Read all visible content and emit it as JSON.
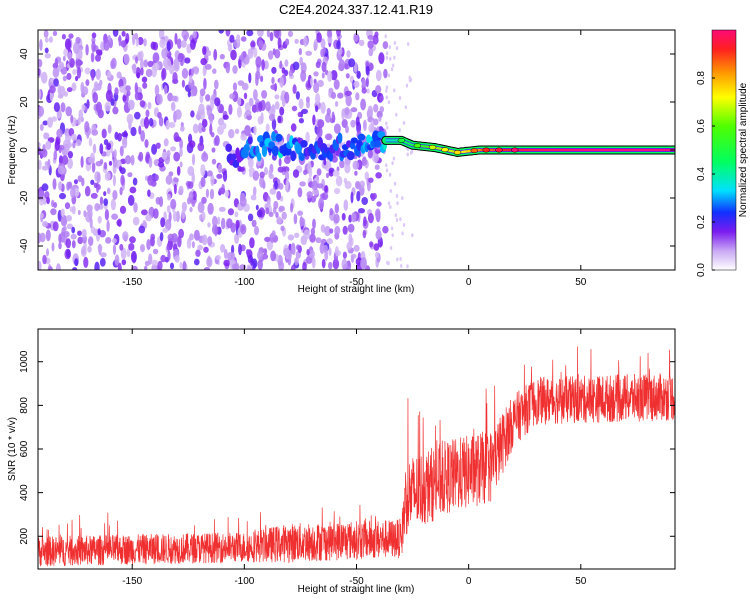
{
  "title": "C2E4.2024.337.12.41.R19",
  "colors": {
    "snr_line": "#f03030",
    "spectro_scatter": "#7a2cf0",
    "frame": "#000000"
  },
  "chart_data": [
    {
      "type": "heatmap",
      "name": "spectrogram",
      "xlabel": "Height of straight line (km)",
      "ylabel": "Frequency (Hz)",
      "xlim": [
        -192,
        92
      ],
      "ylim": [
        -50,
        50
      ],
      "x_ticks": [
        -150,
        -100,
        -50,
        0,
        50
      ],
      "x_tick_labels": [
        "-150",
        "-100",
        "-50",
        "0",
        "50"
      ],
      "y_ticks": [
        -40,
        -20,
        0,
        20,
        40
      ],
      "y_tick_labels": [
        "-40",
        "-20",
        "0",
        "20",
        "40"
      ],
      "scatter_region_x": [
        -192,
        -37
      ],
      "signal_track": [
        {
          "x": -107,
          "f": -3,
          "a": 0.18
        },
        {
          "x": -95,
          "f": 1,
          "a": 0.28
        },
        {
          "x": -85,
          "f": 2,
          "a": 0.32
        },
        {
          "x": -75,
          "f": 0,
          "a": 0.25
        },
        {
          "x": -60,
          "f": 1,
          "a": 0.22
        },
        {
          "x": -48,
          "f": 2,
          "a": 0.25
        },
        {
          "x": -38,
          "f": 4,
          "a": 0.35
        },
        {
          "x": -30,
          "f": 4,
          "a": 0.45
        },
        {
          "x": -25,
          "f": 2,
          "a": 0.5
        },
        {
          "x": -15,
          "f": 1,
          "a": 0.65
        },
        {
          "x": -5,
          "f": -1,
          "a": 0.7
        },
        {
          "x": 5,
          "f": 0,
          "a": 0.85
        },
        {
          "x": 20,
          "f": 0,
          "a": 0.95
        },
        {
          "x": 50,
          "f": 0,
          "a": 1.0
        },
        {
          "x": 92,
          "f": 0,
          "a": 1.0
        }
      ],
      "colorbar": {
        "label": "Normalized spectral amplitude",
        "range": [
          0,
          1
        ],
        "ticks": [
          0.0,
          0.2,
          0.4,
          0.6,
          0.8
        ],
        "tick_labels": [
          "0.0",
          "0.2",
          "0.4",
          "0.6",
          "0.8"
        ]
      }
    },
    {
      "type": "line",
      "name": "snr",
      "xlabel": "Height of straight line (km)",
      "ylabel": "SNR (10 * v/v)",
      "xlim": [
        -192,
        92
      ],
      "ylim": [
        50,
        1150
      ],
      "x_ticks": [
        -150,
        -100,
        -50,
        0,
        50
      ],
      "x_tick_labels": [
        "-150",
        "-100",
        "-50",
        "0",
        "50"
      ],
      "y_ticks": [
        200,
        400,
        600,
        800,
        1000
      ],
      "y_tick_labels": [
        "200",
        "400",
        "600",
        "800",
        "1000"
      ],
      "trend": {
        "x": [
          -192,
          -100,
          -80,
          -30,
          -28,
          -10,
          10,
          20,
          30,
          60,
          92
        ],
        "mean": [
          130,
          150,
          170,
          190,
          380,
          470,
          520,
          730,
          820,
          830,
          840
        ],
        "spread": [
          70,
          70,
          90,
          90,
          180,
          170,
          170,
          120,
          110,
          110,
          110
        ]
      }
    }
  ]
}
